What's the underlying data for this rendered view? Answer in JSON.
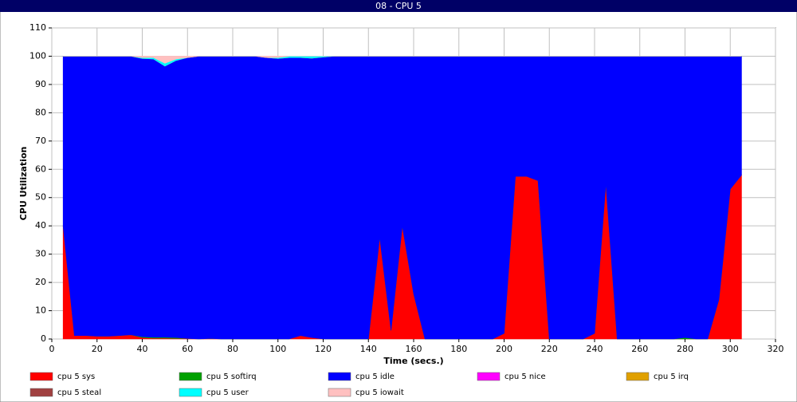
{
  "chart_data": {
    "type": "stacked-area",
    "title": "08 - CPU 5",
    "x_label": "Time (secs.)",
    "y_label": "CPU Utilization",
    "x": [
      5,
      10,
      15,
      20,
      25,
      30,
      35,
      40,
      45,
      50,
      55,
      60,
      65,
      70,
      75,
      80,
      85,
      90,
      95,
      100,
      105,
      110,
      115,
      120,
      125,
      130,
      135,
      140,
      145,
      150,
      155,
      160,
      165,
      170,
      175,
      180,
      185,
      190,
      195,
      200,
      205,
      210,
      215,
      220,
      225,
      230,
      235,
      240,
      245,
      250,
      255,
      260,
      265,
      270,
      275,
      280,
      285,
      290,
      295,
      300,
      305
    ],
    "series": [
      {
        "name": "cpu 5 sys",
        "color": "#ff0000",
        "values": [
          40,
          1.2,
          1.2,
          1,
          1,
          1.2,
          1.5,
          0.5,
          0.3,
          0.3,
          0.2,
          0.2,
          0,
          0.2,
          0,
          0,
          0,
          0,
          0,
          0,
          0,
          1.2,
          0.5,
          0,
          0,
          0,
          0,
          0,
          36,
          3,
          40,
          16,
          0,
          0,
          0,
          0,
          0,
          0,
          0,
          2,
          57.5,
          57.5,
          56,
          0,
          0,
          0,
          0,
          2,
          55,
          0,
          0,
          0,
          0,
          0,
          0,
          0,
          0,
          0,
          14,
          53,
          58
        ]
      },
      {
        "name": "cpu 5 softirq",
        "color": "#00a000",
        "values": [
          0,
          0,
          0,
          0,
          0,
          0,
          0,
          0.3,
          0.3,
          0.3,
          0.3,
          0,
          0,
          0,
          0,
          0,
          0,
          0,
          0,
          0,
          0,
          0,
          0,
          0,
          0,
          0,
          0,
          0,
          0,
          0,
          0,
          0,
          0,
          0,
          0,
          0,
          0,
          0,
          0,
          0,
          0,
          0,
          0,
          0,
          0,
          0,
          0,
          0,
          0,
          0,
          0,
          0,
          0,
          0,
          0,
          0.5,
          0,
          0,
          0,
          0,
          0
        ]
      },
      {
        "name": "cpu 5 idle",
        "color": "#0000ff",
        "values": [
          60,
          98.8,
          98.8,
          99,
          99,
          98.8,
          98.5,
          98.4,
          98.4,
          95.9,
          98,
          99.3,
          100,
          99.8,
          100,
          100,
          100,
          100,
          99.5,
          99.2,
          99.5,
          98.3,
          98.8,
          99.7,
          100,
          100,
          100,
          100,
          64,
          97,
          60,
          84,
          100,
          100,
          100,
          100,
          100,
          100,
          100,
          98,
          42.5,
          42.5,
          44,
          100,
          100,
          100,
          100,
          98,
          45,
          100,
          100,
          100,
          100,
          100,
          100,
          99.5,
          100,
          100,
          86,
          47,
          42
        ]
      },
      {
        "name": "cpu 5 nice",
        "color": "#ff00ff",
        "values": [
          0,
          0,
          0,
          0,
          0,
          0,
          0,
          0,
          0,
          0,
          0,
          0,
          0,
          0,
          0,
          0,
          0,
          0,
          0,
          0,
          0,
          0,
          0,
          0,
          0,
          0,
          0,
          0,
          0,
          0,
          0,
          0,
          0,
          0,
          0,
          0,
          0,
          0,
          0,
          0,
          0,
          0,
          0,
          0,
          0,
          0,
          0,
          0,
          0,
          0,
          0,
          0,
          0,
          0,
          0,
          0,
          0,
          0,
          0,
          0,
          0
        ]
      },
      {
        "name": "cpu 5 irq",
        "color": "#e0a000",
        "values": [
          0,
          0,
          0,
          0,
          0,
          0,
          0,
          0,
          0,
          0,
          0,
          0,
          0,
          0,
          0,
          0,
          0,
          0,
          0,
          0,
          0,
          0,
          0,
          0,
          0,
          0,
          0,
          0,
          0,
          0,
          0,
          0,
          0,
          0,
          0,
          0,
          0,
          0,
          0,
          0,
          0,
          0,
          0,
          0,
          0,
          0,
          0,
          0,
          0,
          0,
          0,
          0,
          0,
          0,
          0,
          0,
          0,
          0,
          0,
          0,
          0
        ]
      },
      {
        "name": "cpu 5 steal",
        "color": "#a04040",
        "values": [
          0,
          0,
          0,
          0,
          0,
          0,
          0,
          0,
          0,
          0,
          0,
          0,
          0,
          0,
          0,
          0,
          0,
          0,
          0,
          0,
          0,
          0,
          0,
          0,
          0,
          0,
          0,
          0,
          0,
          0,
          0,
          0,
          0,
          0,
          0,
          0,
          0,
          0,
          0,
          0,
          0,
          0,
          0,
          0,
          0,
          0,
          0,
          0,
          0,
          0,
          0,
          0,
          0,
          0,
          0,
          0,
          0,
          0,
          0,
          0,
          0
        ]
      },
      {
        "name": "cpu 5 user",
        "color": "#00ffff",
        "values": [
          0,
          0,
          0,
          0,
          0,
          0,
          0,
          0.3,
          0.5,
          1,
          0.5,
          0,
          0,
          0,
          0,
          0,
          0,
          0,
          0,
          0.3,
          0.5,
          0.5,
          0.7,
          0.3,
          0,
          0,
          0,
          0,
          0,
          0,
          0,
          0,
          0,
          0,
          0,
          0,
          0,
          0,
          0,
          0,
          0,
          0,
          0,
          0,
          0,
          0,
          0,
          0,
          0,
          0,
          0,
          0,
          0,
          0,
          0,
          0,
          0,
          0,
          0,
          0,
          0
        ]
      },
      {
        "name": "cpu 5 iowait",
        "color": "#ffc0c0",
        "values": [
          0,
          0,
          0,
          0,
          0,
          0,
          0,
          0.5,
          0.5,
          2.5,
          1,
          0.5,
          0,
          0,
          0,
          0,
          0,
          0,
          0.5,
          0.5,
          0,
          0,
          0,
          0,
          0,
          0,
          0,
          0,
          0,
          0,
          0,
          0,
          0,
          0,
          0,
          0,
          0,
          0,
          0,
          0,
          0,
          0,
          0,
          0,
          0,
          0,
          0,
          0,
          0,
          0,
          0,
          0,
          0,
          0,
          0,
          0,
          0,
          0,
          0,
          0,
          0
        ]
      }
    ],
    "xlim": [
      0,
      320
    ],
    "xticks": [
      0,
      20,
      40,
      60,
      80,
      100,
      120,
      140,
      160,
      180,
      200,
      220,
      240,
      260,
      280,
      300,
      320
    ],
    "ylim": [
      0,
      110
    ],
    "yticks": [
      0,
      10,
      20,
      30,
      40,
      50,
      60,
      70,
      80,
      90,
      100,
      110
    ],
    "grid": true
  }
}
